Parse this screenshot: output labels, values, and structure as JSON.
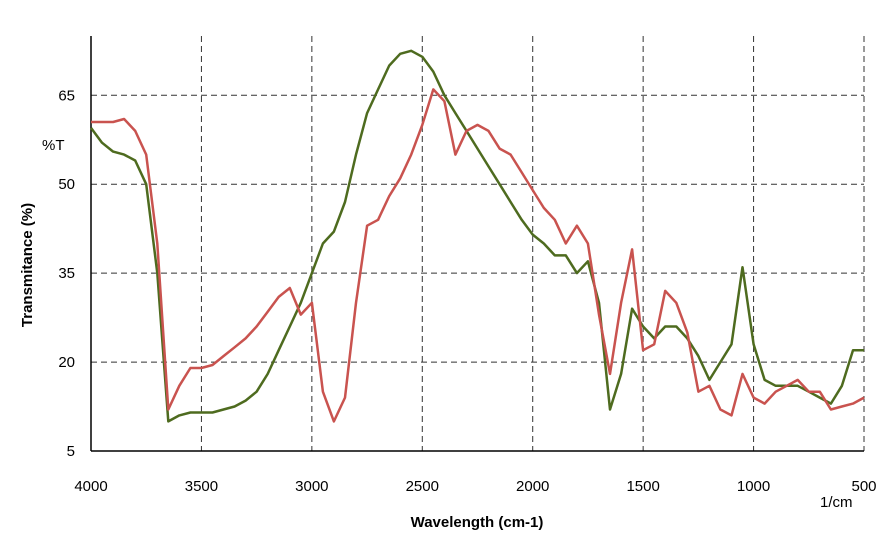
{
  "chart_data": {
    "type": "line",
    "y_label": "Transmitance (%)",
    "x_label": "Wavelength (cm-1)",
    "annotations": [
      "%T",
      "1/cm"
    ],
    "x": [
      4000,
      3950,
      3900,
      3850,
      3800,
      3750,
      3700,
      3650,
      3600,
      3550,
      3500,
      3450,
      3400,
      3350,
      3300,
      3250,
      3200,
      3150,
      3100,
      3050,
      3000,
      2950,
      2900,
      2850,
      2800,
      2750,
      2700,
      2650,
      2600,
      2550,
      2500,
      2450,
      2400,
      2350,
      2300,
      2250,
      2200,
      2150,
      2100,
      2050,
      2000,
      1950,
      1900,
      1850,
      1800,
      1750,
      1700,
      1650,
      1600,
      1550,
      1500,
      1450,
      1400,
      1350,
      1300,
      1250,
      1200,
      1150,
      1100,
      1050,
      1000,
      950,
      900,
      850,
      800,
      750,
      700,
      650,
      600,
      550,
      500
    ],
    "series": [
      {
        "color": "#4e6b1f",
        "values": [
          59.5,
          57,
          55.5,
          55,
          54,
          50,
          35,
          10,
          11,
          11.5,
          11.5,
          11.5,
          12,
          12.5,
          13.5,
          15,
          18,
          22,
          26,
          30,
          35,
          40,
          42,
          47,
          55,
          62,
          66,
          70,
          72,
          72.5,
          71.5,
          69,
          65,
          62,
          59,
          56,
          53,
          50,
          47,
          44,
          41.5,
          40,
          38,
          38,
          35,
          37,
          30,
          12,
          18,
          29,
          26,
          24,
          26,
          26,
          24,
          21,
          17,
          20,
          23,
          36,
          23,
          17,
          16,
          16,
          16,
          15,
          14,
          13,
          16,
          22,
          22
        ]
      },
      {
        "color": "#c9534f",
        "values": [
          60.5,
          60.5,
          60.5,
          61,
          59,
          55,
          40,
          12,
          16,
          19,
          19,
          19.5,
          21,
          22.5,
          24,
          26,
          28.5,
          31,
          32.5,
          28,
          30,
          15,
          10,
          14,
          30,
          43,
          44,
          48,
          51,
          55,
          60,
          66,
          64,
          55,
          59,
          60,
          59,
          56,
          55,
          52,
          49,
          46,
          44,
          40,
          43,
          40,
          28,
          18,
          30,
          39,
          22,
          23,
          32,
          30,
          25,
          15,
          16,
          12,
          11,
          18,
          14,
          13,
          15,
          16,
          17,
          15,
          15,
          12,
          12.5,
          13,
          14
        ]
      }
    ],
    "xlim": [
      4000,
      500
    ],
    "xticks": [
      4000,
      3500,
      3000,
      2500,
      2000,
      1500,
      1000,
      500
    ],
    "ylim": [
      5,
      75
    ],
    "yticks": [
      5,
      20,
      35,
      50,
      65
    ],
    "grid": true
  }
}
